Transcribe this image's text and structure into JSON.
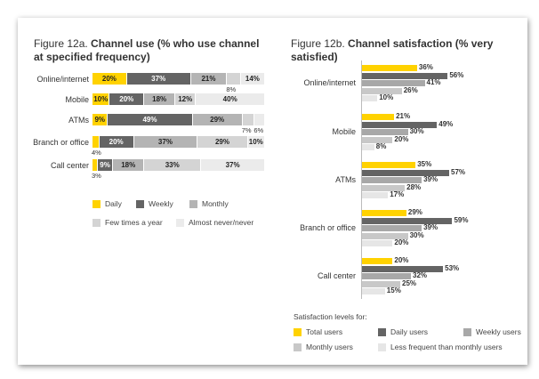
{
  "chart_data": [
    {
      "type": "bar",
      "orientation": "horizontal-stacked",
      "title": "Figure 12a.",
      "title_bold": "Channel use (% who use channel at specified frequency)",
      "categories": [
        "Online/internet",
        "Mobile",
        "ATMs",
        "Branch or office",
        "Call center"
      ],
      "series": [
        {
          "name": "Daily",
          "color": "#ffd200",
          "values": [
            20,
            10,
            9,
            4,
            3
          ]
        },
        {
          "name": "Weekly",
          "color": "#646464",
          "values": [
            37,
            20,
            49,
            20,
            9
          ]
        },
        {
          "name": "Monthly",
          "color": "#b4b4b4",
          "values": [
            21,
            18,
            29,
            37,
            18
          ]
        },
        {
          "name": "Few times a year",
          "color": "#d4d4d4",
          "values": [
            8,
            12,
            7,
            29,
            33
          ]
        },
        {
          "name": "Almost never/never",
          "color": "#ebebeb",
          "values": [
            14,
            40,
            6,
            10,
            37
          ]
        }
      ],
      "labels": [
        [
          "20%",
          "37%",
          "21%",
          "8%",
          "14%"
        ],
        [
          "10%",
          "20%",
          "18%",
          "12%",
          "40%"
        ],
        [
          "9%",
          "49%",
          "29%",
          "7%",
          "6%"
        ],
        [
          "4%",
          "20%",
          "37%",
          "29%",
          "10%"
        ],
        [
          "3%",
          "9%",
          "18%",
          "33%",
          "37%"
        ]
      ]
    },
    {
      "type": "bar",
      "orientation": "horizontal-grouped",
      "title": "Figure 12b.",
      "title_bold": "Channel satisfaction (% very satisfied)",
      "categories": [
        "Online/internet",
        "Mobile",
        "ATMs",
        "Branch or office",
        "Call center"
      ],
      "legend_title": "Satisfaction levels for:",
      "series": [
        {
          "name": "Total users",
          "color": "#ffd200",
          "values": [
            36,
            21,
            35,
            29,
            20
          ]
        },
        {
          "name": "Daily users",
          "color": "#646464",
          "values": [
            56,
            49,
            57,
            59,
            53
          ]
        },
        {
          "name": "Weekly users",
          "color": "#a8a8a8",
          "values": [
            41,
            30,
            39,
            39,
            32
          ]
        },
        {
          "name": "Monthly users",
          "color": "#c8c8c8",
          "values": [
            26,
            20,
            28,
            30,
            25
          ]
        },
        {
          "name": "Less frequent than monthly users",
          "color": "#e6e6e6",
          "values": [
            10,
            8,
            17,
            20,
            15
          ]
        }
      ]
    }
  ]
}
